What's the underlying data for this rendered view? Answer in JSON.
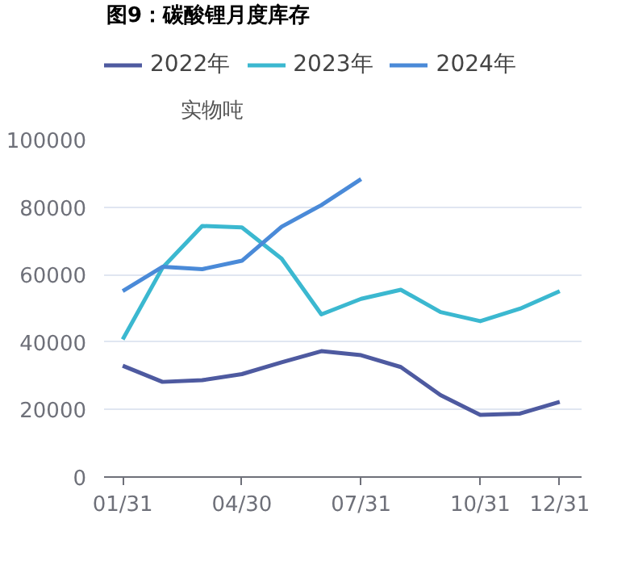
{
  "chart_data": {
    "type": "line",
    "title": "图9：碳酸锂月度库存",
    "ylabel": "实物吨",
    "categories": [
      "01/31",
      null,
      null,
      "04/30",
      null,
      null,
      "07/31",
      null,
      null,
      "10/31",
      null,
      "12/31"
    ],
    "series": [
      {
        "name": "2022年",
        "color": "#4e5aa0",
        "values": [
          33000,
          28200,
          28700,
          30500,
          34000,
          37300,
          36100,
          32600,
          24300,
          18400,
          18800,
          22300
        ]
      },
      {
        "name": "2023年",
        "color": "#3bb8d0",
        "values": [
          40800,
          62000,
          74400,
          74000,
          64700,
          48200,
          52800,
          55500,
          48900,
          46200,
          49900,
          55100
        ]
      },
      {
        "name": "2024年",
        "color": "#4a8ad8",
        "values": [
          55100,
          62300,
          61600,
          64100,
          74200,
          80600,
          88300,
          null,
          null,
          null,
          null,
          null
        ]
      }
    ],
    "ylim": [
      0,
      100000
    ],
    "yticks": [
      0,
      20000,
      40000,
      60000,
      80000,
      100000
    ],
    "grid": "y",
    "legend": "top left",
    "marker": "none",
    "line_style": "solid"
  }
}
